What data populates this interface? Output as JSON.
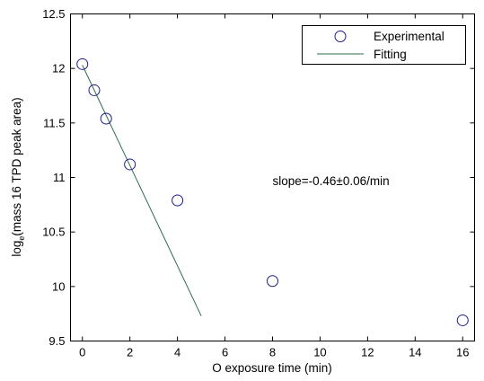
{
  "chart_data": {
    "type": "scatter",
    "xlabel": "O exposure time (min)",
    "ylabel_main": "log",
    "ylabel_sub": "e",
    "ylabel_rest": "(mass 16 TPD peak area)",
    "xlim": [
      -0.5,
      16.5
    ],
    "ylim": [
      9.5,
      12.5
    ],
    "x_ticks": [
      0,
      2,
      4,
      6,
      8,
      10,
      12,
      14,
      16
    ],
    "x_tick_labels": [
      "0",
      "2",
      "4",
      "6",
      "8",
      "10",
      "12",
      "14",
      "16"
    ],
    "y_ticks": [
      9.5,
      10,
      10.5,
      11,
      11.5,
      12,
      12.5
    ],
    "y_tick_labels": [
      "9.5",
      "10",
      "10.5",
      "11",
      "11.5",
      "12",
      "12.5"
    ],
    "grid": false,
    "legend_position": "top-right",
    "series": [
      {
        "name": "Experimental",
        "kind": "markers",
        "marker": "open-circle",
        "color": "#1c1c8c",
        "x": [
          0,
          0.5,
          1,
          2,
          4,
          8,
          16
        ],
        "y": [
          12.04,
          11.8,
          11.54,
          11.12,
          10.79,
          10.05,
          9.69
        ]
      },
      {
        "name": "Fitting",
        "kind": "line",
        "color": "#2e6b4a",
        "x": [
          0,
          5
        ],
        "y": [
          12.03,
          9.73
        ]
      }
    ],
    "annotations": [
      {
        "text": "slope=-0.46±0.06/min",
        "x": 8,
        "y": 10.97
      }
    ]
  }
}
